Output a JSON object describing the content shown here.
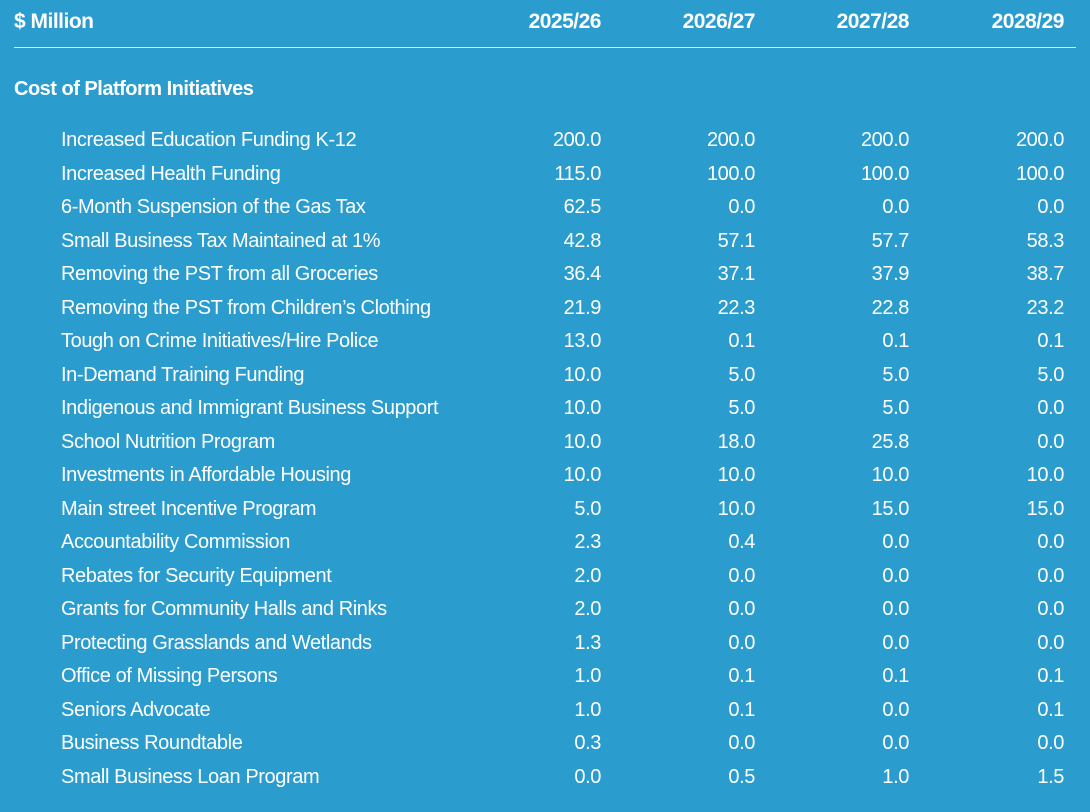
{
  "header": {
    "unit_label": "$ Million",
    "years": [
      "2025/26",
      "2026/27",
      "2027/28",
      "2028/29"
    ]
  },
  "section_title": "Cost of Platform Initiatives",
  "rows": [
    {
      "label": "Increased Education Funding K-12",
      "values": [
        "200.0",
        "200.0",
        "200.0",
        "200.0"
      ]
    },
    {
      "label": "Increased Health Funding",
      "values": [
        "115.0",
        "100.0",
        "100.0",
        "100.0"
      ]
    },
    {
      "label": "6-Month Suspension of the Gas Tax",
      "values": [
        "62.5",
        "0.0",
        "0.0",
        "0.0"
      ]
    },
    {
      "label": "Small Business Tax Maintained at 1%",
      "values": [
        "42.8",
        "57.1",
        "57.7",
        "58.3"
      ]
    },
    {
      "label": "Removing the PST from all Groceries",
      "values": [
        "36.4",
        "37.1",
        "37.9",
        "38.7"
      ]
    },
    {
      "label": "Removing the PST from Children’s Clothing",
      "values": [
        "21.9",
        "22.3",
        "22.8",
        "23.2"
      ]
    },
    {
      "label": "Tough on Crime Initiatives/Hire Police",
      "values": [
        "13.0",
        "0.1",
        "0.1",
        "0.1"
      ]
    },
    {
      "label": "In-Demand Training Funding",
      "values": [
        "10.0",
        "5.0",
        "5.0",
        "5.0"
      ]
    },
    {
      "label": "Indigenous and Immigrant Business Support",
      "values": [
        "10.0",
        "5.0",
        "5.0",
        "0.0"
      ]
    },
    {
      "label": "School Nutrition Program",
      "values": [
        "10.0",
        "18.0",
        "25.8",
        "0.0"
      ]
    },
    {
      "label": "Investments in Affordable Housing",
      "values": [
        "10.0",
        "10.0",
        "10.0",
        "10.0"
      ]
    },
    {
      "label": "Main street Incentive Program",
      "values": [
        "5.0",
        "10.0",
        "15.0",
        "15.0"
      ]
    },
    {
      "label": "Accountability Commission",
      "values": [
        "2.3",
        "0.4",
        "0.0",
        "0.0"
      ]
    },
    {
      "label": "Rebates for Security Equipment",
      "values": [
        "2.0",
        "0.0",
        "0.0",
        "0.0"
      ]
    },
    {
      "label": "Grants for Community Halls and Rinks",
      "values": [
        "2.0",
        "0.0",
        "0.0",
        "0.0"
      ]
    },
    {
      "label": "Protecting Grasslands and Wetlands",
      "values": [
        "1.3",
        "0.0",
        "0.0",
        "0.0"
      ]
    },
    {
      "label": "Office of Missing Persons",
      "values": [
        "1.0",
        "0.1",
        "0.1",
        "0.1"
      ]
    },
    {
      "label": "Seniors Advocate",
      "values": [
        "1.0",
        "0.1",
        "0.0",
        "0.1"
      ]
    },
    {
      "label": "Business Roundtable",
      "values": [
        "0.3",
        "0.0",
        "0.0",
        "0.0"
      ]
    },
    {
      "label": "Small Business Loan Program",
      "values": [
        "0.0",
        "0.5",
        "1.0",
        "1.5"
      ]
    }
  ]
}
